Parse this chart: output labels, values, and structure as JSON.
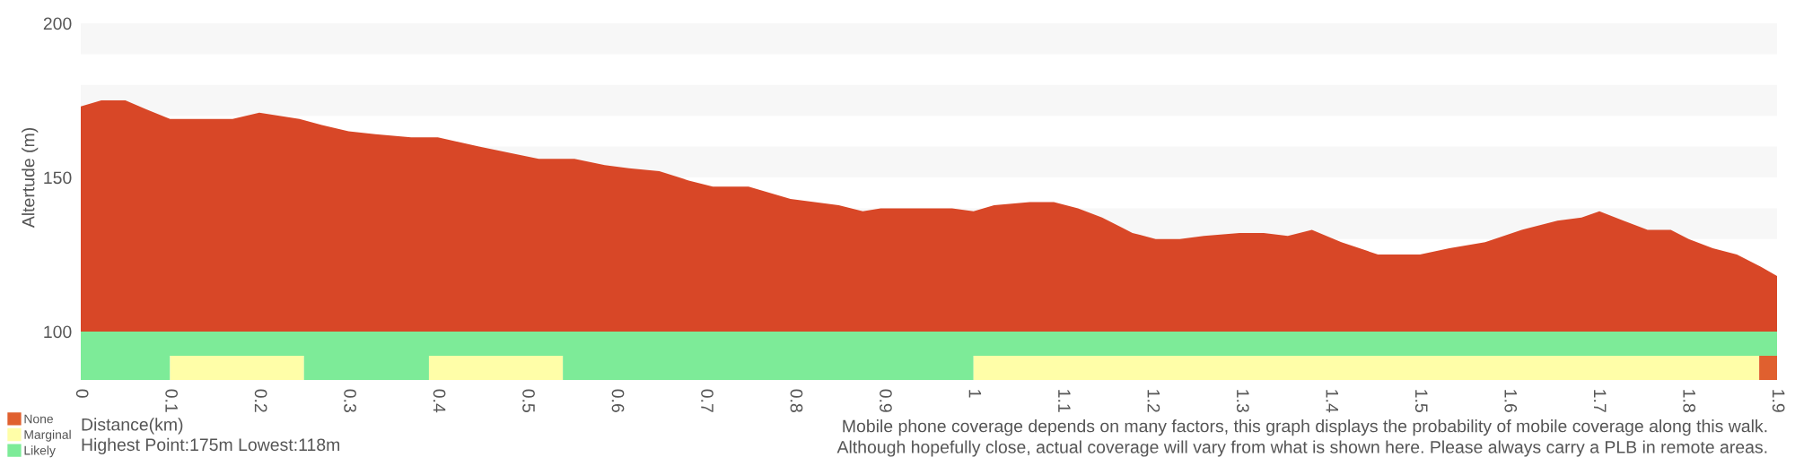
{
  "chart_data": [
    {
      "type": "area",
      "color": "#d84727",
      "ylabel": "Altertude (m)",
      "xlim": [
        0,
        1.9
      ],
      "ylim": [
        100,
        200
      ],
      "yticks": [
        100,
        150,
        200
      ],
      "tick_labels": "y",
      "grid": false,
      "x": [
        0,
        0.023,
        0.05,
        0.074,
        0.1,
        0.13,
        0.17,
        0.2,
        0.245,
        0.27,
        0.3,
        0.33,
        0.37,
        0.4,
        0.446,
        0.48,
        0.513,
        0.553,
        0.587,
        0.614,
        0.648,
        0.681,
        0.708,
        0.748,
        0.795,
        0.822,
        0.849,
        0.876,
        0.896,
        0.916,
        0.949,
        0.976,
        1.0,
        1.023,
        1.063,
        1.09,
        1.117,
        1.144,
        1.178,
        1.204,
        1.231,
        1.258,
        1.298,
        1.325,
        1.352,
        1.379,
        1.412,
        1.453,
        1.5,
        1.533,
        1.573,
        1.614,
        1.654,
        1.681,
        1.701,
        1.728,
        1.755,
        1.781,
        1.801,
        1.828,
        1.855,
        1.882,
        1.9
      ],
      "values": [
        173,
        175,
        175,
        172,
        169,
        169,
        169,
        171,
        169,
        167,
        165,
        164,
        163,
        163,
        160,
        158,
        156,
        156,
        154,
        153,
        152,
        149,
        147,
        147,
        143,
        142,
        141,
        139,
        140,
        140,
        140,
        140,
        139,
        141,
        142,
        142,
        140,
        137,
        132,
        130,
        130,
        131,
        132,
        132,
        131,
        133,
        129,
        125,
        125,
        127,
        129,
        133,
        136,
        137,
        139,
        136,
        133,
        133,
        130,
        127,
        125,
        121,
        118
      ],
      "bands": [
        {
          "axis": "y",
          "from": 190,
          "to": 200,
          "color": "#f7f7f7"
        },
        {
          "axis": "y",
          "from": 170,
          "to": 180,
          "color": "#f7f7f7"
        },
        {
          "axis": "y",
          "from": 150,
          "to": 160,
          "color": "#f7f7f7"
        },
        {
          "axis": "y",
          "from": 130,
          "to": 140,
          "color": "#f7f7f7"
        }
      ]
    },
    {
      "type": "bar",
      "orientation": "horizontal",
      "stacked": true,
      "categories": [
        null,
        null
      ],
      "xlabel": "Distance(km)",
      "xlim": [
        0,
        1.9
      ],
      "xticks": [
        0,
        0.1,
        0.2,
        0.3,
        0.4,
        0.5,
        0.6,
        0.7,
        0.8,
        0.9,
        1,
        1.1,
        1.2,
        1.3,
        1.4,
        1.5,
        1.6,
        1.7,
        1.8,
        1.9
      ],
      "tick_labels": "x",
      "legend": "bottom left",
      "series": [
        {
          "name": "Likely",
          "color": "#7deb98",
          "values": [
            1.9,
            0.1
          ]
        },
        {
          "name": "Marginal",
          "color": "#fffea8",
          "values": [
            0,
            0.15
          ]
        },
        {
          "color": "#7deb98",
          "values": [
            0,
            0.14
          ]
        },
        {
          "color": "#fffea8",
          "values": [
            0,
            0.15
          ]
        },
        {
          "color": "#7deb98",
          "values": [
            0,
            0.46
          ]
        },
        {
          "color": "#fffea8",
          "values": [
            0,
            0.88
          ]
        },
        {
          "name": "None",
          "color": "#e0602f",
          "values": [
            0,
            0.02
          ]
        }
      ],
      "annotations": [
        "Highest Point:175m Lowest:118m",
        "Mobile phone coverage depends on many factors, this graph displays the probability of mobile coverage along this walk.",
        "Although hopefully close, actual coverage will vary from what is shown here. Please always carry a PLB in remote areas."
      ]
    }
  ]
}
